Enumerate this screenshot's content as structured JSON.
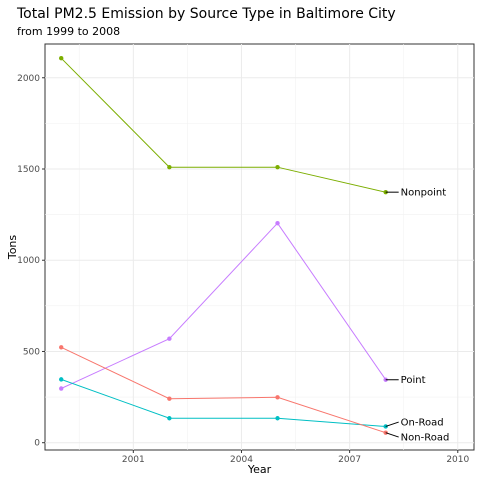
{
  "chart_data": {
    "type": "line",
    "title": "Total PM2.5 Emission by Source Type in Baltimore City",
    "subtitle": "from 1999 to 2008",
    "xlabel": "Year",
    "ylabel": "Tons",
    "xlim": [
      1998.55,
      2010.45
    ],
    "ylim": [
      -40,
      2185
    ],
    "xticks": [
      2001,
      2004,
      2007,
      2010
    ],
    "yticks": [
      0,
      500,
      1000,
      1500,
      2000
    ],
    "grid": true,
    "legend": "none",
    "series": [
      {
        "name": "Nonpoint",
        "color": "#7CAE00",
        "x": [
          1999,
          2002,
          2005,
          2008
        ],
        "y": [
          2107,
          1510,
          1510,
          1373
        ]
      },
      {
        "name": "Point",
        "color": "#C77CFF",
        "x": [
          1999,
          2002,
          2005,
          2008
        ],
        "y": [
          297,
          570,
          1203,
          345
        ]
      },
      {
        "name": "On-Road",
        "color": "#00BFC4",
        "x": [
          1999,
          2002,
          2005,
          2008
        ],
        "y": [
          347,
          134,
          134,
          89
        ]
      },
      {
        "name": "Non-Road",
        "color": "#F8766D",
        "x": [
          1999,
          2002,
          2005,
          2008
        ],
        "y": [
          523,
          241,
          249,
          55
        ]
      }
    ]
  }
}
